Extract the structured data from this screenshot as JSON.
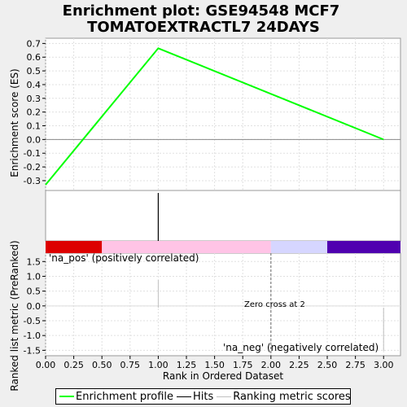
{
  "title_line1": "Enrichment plot: GSE94548 MCF7",
  "title_line2": "TOMATOEXTRACTL7 24DAYS",
  "colors": {
    "es_line": "#00ff00",
    "pos_bar": "#dd0000",
    "pos_light": "#ffc4e6",
    "neg_light": "#d6d6ff",
    "neg_bar": "#5000b0",
    "pos_text": "#c00000",
    "neg_text": "#0000a0"
  },
  "chart_data": {
    "type": "line",
    "xlabel": "Rank in Ordered Dataset",
    "x_ticks": [
      "0.00",
      "0.25",
      "0.50",
      "0.75",
      "1.00",
      "1.25",
      "1.50",
      "1.75",
      "2.00",
      "2.25",
      "2.50",
      "2.75",
      "3.00"
    ],
    "xlim": [
      0,
      3.15
    ],
    "es": {
      "ylabel": "Enrichment score (ES)",
      "ylim": [
        -0.33,
        0.72
      ],
      "y_ticks": [
        "0.7",
        "0.6",
        "0.5",
        "0.4",
        "0.3",
        "0.2",
        "0.1",
        "0.0",
        "-0.1",
        "-0.2",
        "-0.3"
      ],
      "series": [
        {
          "name": "Enrichment profile",
          "x": [
            0,
            1,
            3
          ],
          "y": [
            -0.33,
            0.665,
            0.0
          ]
        }
      ]
    },
    "hits": [
      1
    ],
    "ranked": {
      "ylabel": "Ranked list metric (PreRanked)",
      "ylim": [
        -1.6,
        1.7
      ],
      "y_ticks": [
        "1.5",
        "1.0",
        "0.5",
        "0.0",
        "-0.5",
        "-1.0",
        "-1.5"
      ],
      "pos_label": "'na_pos' (positively correlated)",
      "neg_label": "'na_neg' (negatively correlated)",
      "zero_cross": "Zero cross at 2"
    }
  },
  "legend": {
    "items": [
      {
        "label": "Enrichment profile",
        "color": "#00ff00"
      },
      {
        "label": "Hits",
        "color": "#000000"
      },
      {
        "label": "Ranking metric scores",
        "color": "#c0c0c0"
      }
    ]
  }
}
